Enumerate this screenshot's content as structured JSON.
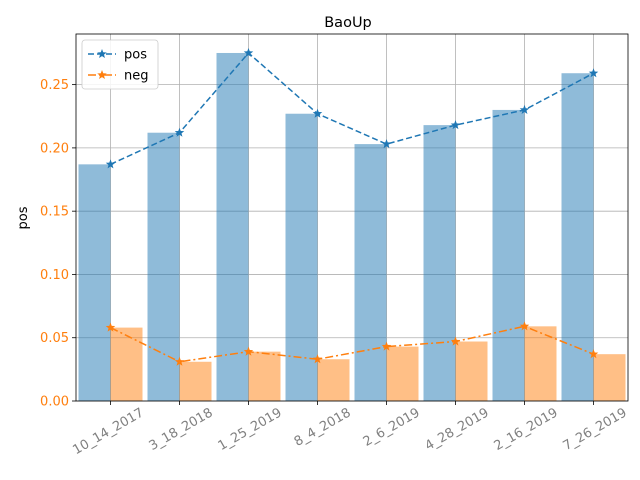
{
  "chart_data": {
    "type": "bar",
    "title": "BaoUp",
    "xlabel": "",
    "ylabel": "pos",
    "ylim": [
      0,
      0.29
    ],
    "yticks": [
      "0.00",
      "0.05",
      "0.10",
      "0.15",
      "0.20",
      "0.25"
    ],
    "categories": [
      "10_14_2017",
      "3_18_2018",
      "1_25_2019",
      "8_4_2018",
      "2_6_2019",
      "4_28_2019",
      "2_16_2019",
      "7_26_2019"
    ],
    "grid": true,
    "legend_position": "top-left",
    "series": [
      {
        "name": "pos",
        "bar_color": "#8cb8da",
        "line_color": "#1f77b4",
        "line_style": "dashed",
        "marker": "star",
        "values": [
          0.187,
          0.212,
          0.275,
          0.227,
          0.203,
          0.218,
          0.23,
          0.259
        ]
      },
      {
        "name": "neg",
        "bar_color": "#ffbb80",
        "line_color": "#ff7f0e",
        "line_style": "dashdot",
        "marker": "star",
        "values": [
          0.058,
          0.031,
          0.039,
          0.033,
          0.043,
          0.047,
          0.059,
          0.037
        ]
      }
    ]
  }
}
